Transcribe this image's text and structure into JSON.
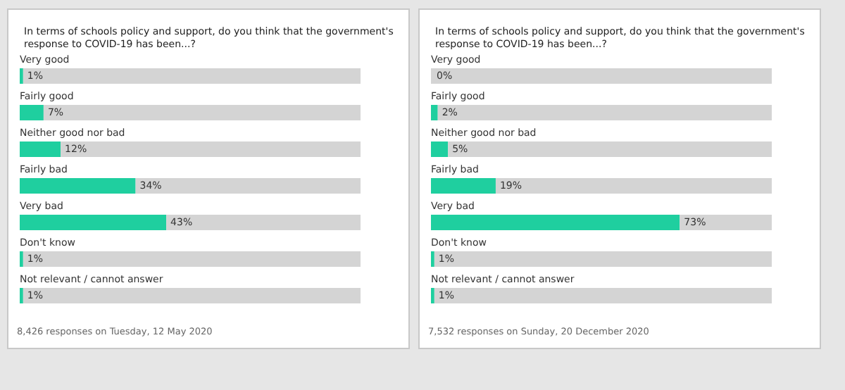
{
  "chart_data": [
    {
      "type": "bar",
      "orientation": "horizontal",
      "stacked": true,
      "title": "In terms of schools policy and support, do you think that the government's response to COVID-19 has been...?",
      "categories": [
        "Very good",
        "Fairly good",
        "Neither good nor bad",
        "Fairly bad",
        "Very bad",
        "Don't know",
        "Not relevant / cannot answer"
      ],
      "series": [
        {
          "color": "#1fcf9f",
          "values": [
            1,
            7,
            12,
            34,
            43,
            1,
            1
          ],
          "value_labels": [
            "1%",
            "7%",
            "12%",
            "34%",
            "43%",
            "1%",
            "1%"
          ]
        },
        {
          "color": "#d4d4d4",
          "values": [
            99,
            93,
            88,
            66,
            57,
            99,
            99
          ]
        }
      ],
      "xlim": [
        0,
        100
      ],
      "tick_labels": false,
      "annotations": [
        "8,426 responses on Tuesday, 12 May 2020"
      ]
    },
    {
      "type": "bar",
      "orientation": "horizontal",
      "stacked": true,
      "title": "In terms of schools policy and support, do you think that the government's response to COVID-19 has been...?",
      "categories": [
        "Very good",
        "Fairly good",
        "Neither good nor bad",
        "Fairly bad",
        "Very bad",
        "Don't know",
        "Not relevant / cannot answer"
      ],
      "series": [
        {
          "color": "#1fcf9f",
          "values": [
            0,
            2,
            5,
            19,
            73,
            1,
            1
          ],
          "value_labels": [
            "0%",
            "2%",
            "5%",
            "19%",
            "73%",
            "1%",
            "1%"
          ]
        },
        {
          "color": "#d4d4d4",
          "values": [
            100,
            98,
            95,
            81,
            27,
            99,
            99
          ]
        }
      ],
      "xlim": [
        0,
        100
      ],
      "tick_labels": false,
      "annotations": [
        "7,532 responses on Sunday, 20 December 2020"
      ]
    }
  ]
}
